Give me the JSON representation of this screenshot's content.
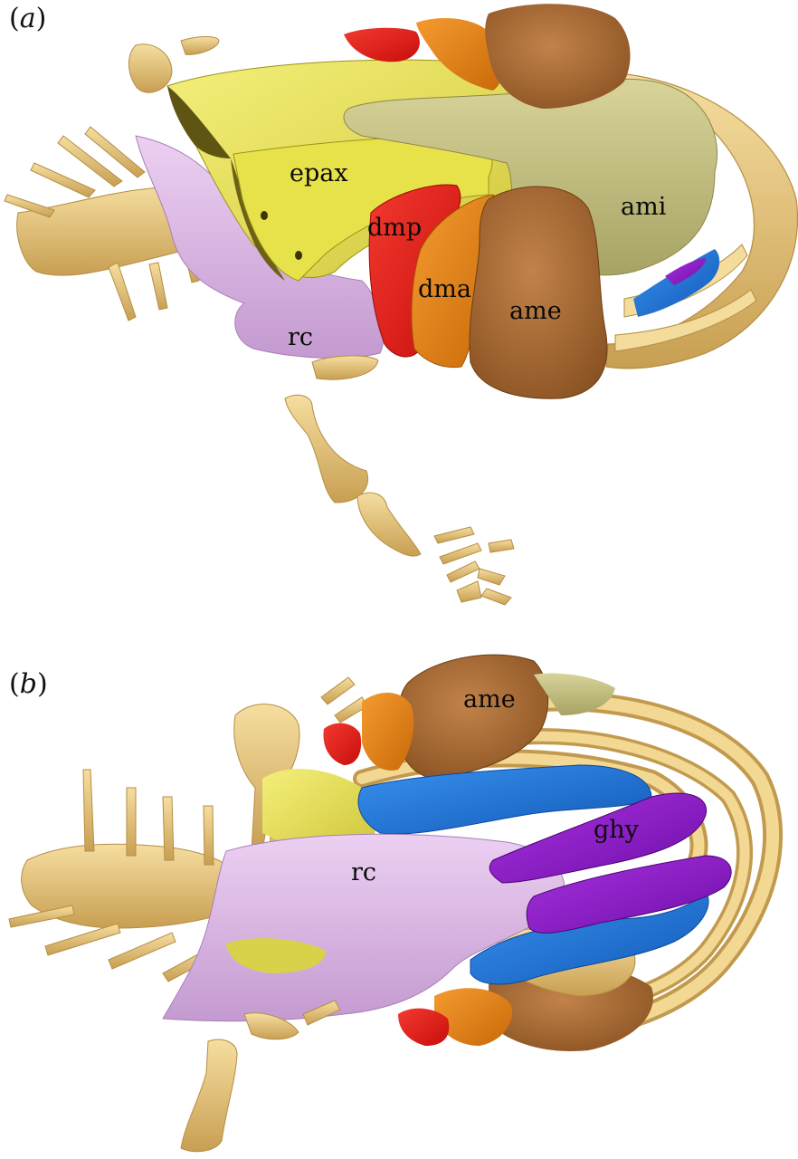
{
  "panels": [
    {
      "id": "a",
      "letter": "a"
    },
    {
      "id": "b",
      "letter": "b"
    }
  ],
  "labels": {
    "epax": "epax",
    "dmp": "dmp",
    "dma": "dma",
    "ame": "ame",
    "ami": "ami",
    "rc": "rc",
    "ghy": "ghy"
  },
  "colors": {
    "bone": "#e9c97a",
    "bone_shadow": "#c9a458",
    "epax": "#e8e35a",
    "epax_shadow": "#6e6418",
    "ami": "#c3bf7c",
    "dmp": "#e51a14",
    "dma": "#e88512",
    "ame": "#a8692e",
    "rc": "#dcb6e6",
    "ghy": "#8a18c4",
    "blue": "#1f78d8"
  }
}
